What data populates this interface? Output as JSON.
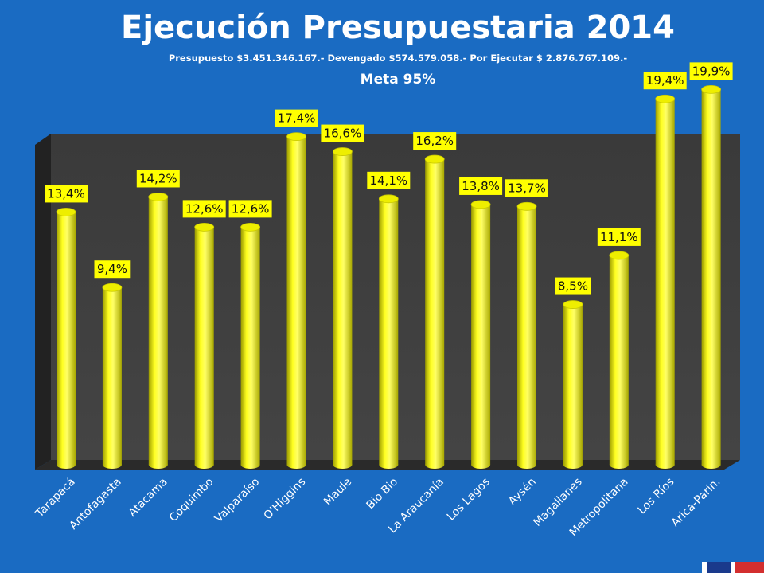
{
  "slide": {
    "title": "Ejecución Presupuestaria 2014",
    "subtitle": "Presupuesto $3.451.346.167.-  Devengado $574.579.058.-  Por Ejecutar $ 2.876.767.109.-",
    "meta": "Meta 95%"
  },
  "colors": {
    "background": "#1a6bc2",
    "bar": "#ffff00",
    "plot_back": "#3c3c3c",
    "label_bg": "#ffff00"
  },
  "chart_data": {
    "type": "bar",
    "categories": [
      "Tarapacá",
      "Antofagasta",
      "Atacama",
      "Coquimbo",
      "Valparaíso",
      "O'Higgins",
      "Maule",
      "Bio Bio",
      "La Araucanía",
      "Los Lagos",
      "Aysén",
      "Magallanes",
      "Metropolitana",
      "Los Ríos",
      "Arica-Parin."
    ],
    "values": [
      13.4,
      9.4,
      14.2,
      12.6,
      12.6,
      17.4,
      16.6,
      14.1,
      16.2,
      13.8,
      13.7,
      8.5,
      11.1,
      19.4,
      19.9
    ],
    "labels": [
      "13,4%",
      "9,4%",
      "14,2%",
      "12,6%",
      "12,6%",
      "17,4%",
      "16,6%",
      "14,1%",
      "16,2%",
      "13,8%",
      "13,7%",
      "8,5%",
      "11,1%",
      "19,4%",
      "19,9%"
    ],
    "ylim": [
      0,
      20
    ],
    "grid": false,
    "legend": "none",
    "style": "3d-cylinder"
  }
}
